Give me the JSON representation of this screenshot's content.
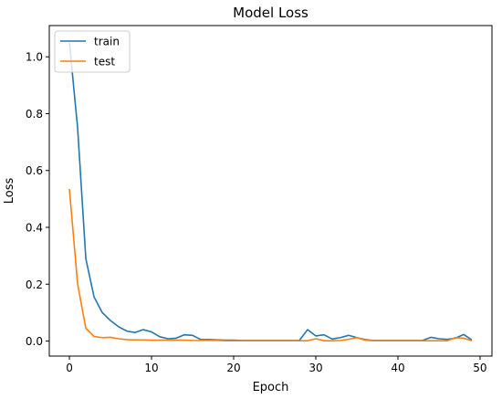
{
  "chart_data": {
    "type": "line",
    "title": "Model Loss",
    "xlabel": "Epoch",
    "ylabel": "Loss",
    "xlim": [
      -2.45,
      51.45
    ],
    "ylim": [
      -0.053,
      1.11
    ],
    "xticks": [
      0,
      10,
      20,
      30,
      40,
      50
    ],
    "yticks": [
      0.0,
      0.2,
      0.4,
      0.6,
      0.8,
      1.0
    ],
    "ytick_labels": [
      "0.0",
      "0.2",
      "0.4",
      "0.6",
      "0.8",
      "1.0"
    ],
    "grid": false,
    "legend": "upper-left",
    "series": [
      {
        "name": "train",
        "color": "#1f77b4",
        "x": [
          0,
          1,
          2,
          3,
          4,
          5,
          6,
          7,
          8,
          9,
          10,
          11,
          12,
          13,
          14,
          15,
          16,
          17,
          18,
          19,
          20,
          21,
          22,
          23,
          24,
          25,
          26,
          27,
          28,
          29,
          30,
          31,
          32,
          33,
          34,
          35,
          36,
          37,
          38,
          39,
          40,
          41,
          42,
          43,
          44,
          45,
          46,
          47,
          48,
          49
        ],
        "values": [
          1.05,
          0.75,
          0.29,
          0.155,
          0.1,
          0.072,
          0.05,
          0.035,
          0.03,
          0.04,
          0.032,
          0.015,
          0.008,
          0.01,
          0.022,
          0.02,
          0.005,
          0.005,
          0.004,
          0.003,
          0.003,
          0.002,
          0.002,
          0.002,
          0.002,
          0.002,
          0.002,
          0.002,
          0.002,
          0.04,
          0.018,
          0.022,
          0.007,
          0.012,
          0.02,
          0.012,
          0.005,
          0.002,
          0.002,
          0.002,
          0.002,
          0.002,
          0.002,
          0.002,
          0.013,
          0.008,
          0.006,
          0.01,
          0.023,
          0.004
        ]
      },
      {
        "name": "test",
        "color": "#ff7f0e",
        "x": [
          0,
          1,
          2,
          3,
          4,
          5,
          6,
          7,
          8,
          9,
          10,
          11,
          12,
          13,
          14,
          15,
          16,
          17,
          18,
          19,
          20,
          21,
          22,
          23,
          24,
          25,
          26,
          27,
          28,
          29,
          30,
          31,
          32,
          33,
          34,
          35,
          36,
          37,
          38,
          39,
          40,
          41,
          42,
          43,
          44,
          45,
          46,
          47,
          48,
          49
        ],
        "values": [
          0.535,
          0.2,
          0.045,
          0.016,
          0.012,
          0.013,
          0.008,
          0.005,
          0.004,
          0.004,
          0.003,
          0.003,
          0.003,
          0.003,
          0.003,
          0.002,
          0.002,
          0.002,
          0.002,
          0.001,
          0.001,
          0.001,
          0.001,
          0.001,
          0.001,
          0.001,
          0.001,
          0.001,
          0.001,
          0.001,
          0.008,
          0.001,
          0.001,
          0.002,
          0.006,
          0.012,
          0.003,
          0.001,
          0.001,
          0.001,
          0.001,
          0.001,
          0.001,
          0.001,
          0.001,
          0.001,
          0.001,
          0.012,
          0.01,
          0.001
        ]
      }
    ]
  }
}
